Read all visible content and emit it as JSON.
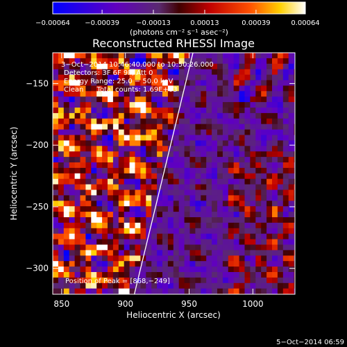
{
  "chart_data": {
    "type": "heatmap",
    "title": "Reconstructed RHESSI Image",
    "xlabel": "Heliocentric X (arcsec)",
    "ylabel": "Heliocentric Y (arcsec)",
    "xlim": [
      843,
      1033
    ],
    "ylim": [
      -321,
      -125
    ],
    "x_ticks": [
      850,
      900,
      950,
      1000
    ],
    "y_ticks": [
      -150,
      -200,
      -250,
      -300
    ],
    "x_tick_labels": [
      "850",
      "900",
      "950",
      "1000"
    ],
    "y_tick_labels": [
      "−150",
      "−200",
      "−250",
      "−300"
    ],
    "colorbar": {
      "min": -0.00064,
      "max": 0.00064,
      "ticks": [
        -0.00064,
        -0.00039,
        -0.00013,
        0.00013,
        0.00039,
        0.00064
      ],
      "tick_labels": [
        "−0.00064",
        "−0.00039",
        "−0.00013",
        "0.00013",
        "0.00039",
        "0.00064"
      ],
      "unit_label": "(photons cm⁻² s⁻¹ asec⁻²)"
    },
    "annotations": [
      "3−Oct−2014 10:46:40.000 to 10:50:26.000",
      "Detectors: 3F 6F 9F, Att 0",
      "Energy Range: 25.0 − 50.0 keV",
      "Clean      Total counts: 1.69E+03"
    ],
    "peak_text": "Position of Peak = [868,−249]",
    "peak_position": [
      868,
      -249
    ],
    "limb_line": [
      [
        907,
        -321
      ],
      [
        953,
        -125
      ]
    ],
    "grid": false
  },
  "footer": {
    "date": "5−Oct−2014 06:59"
  }
}
